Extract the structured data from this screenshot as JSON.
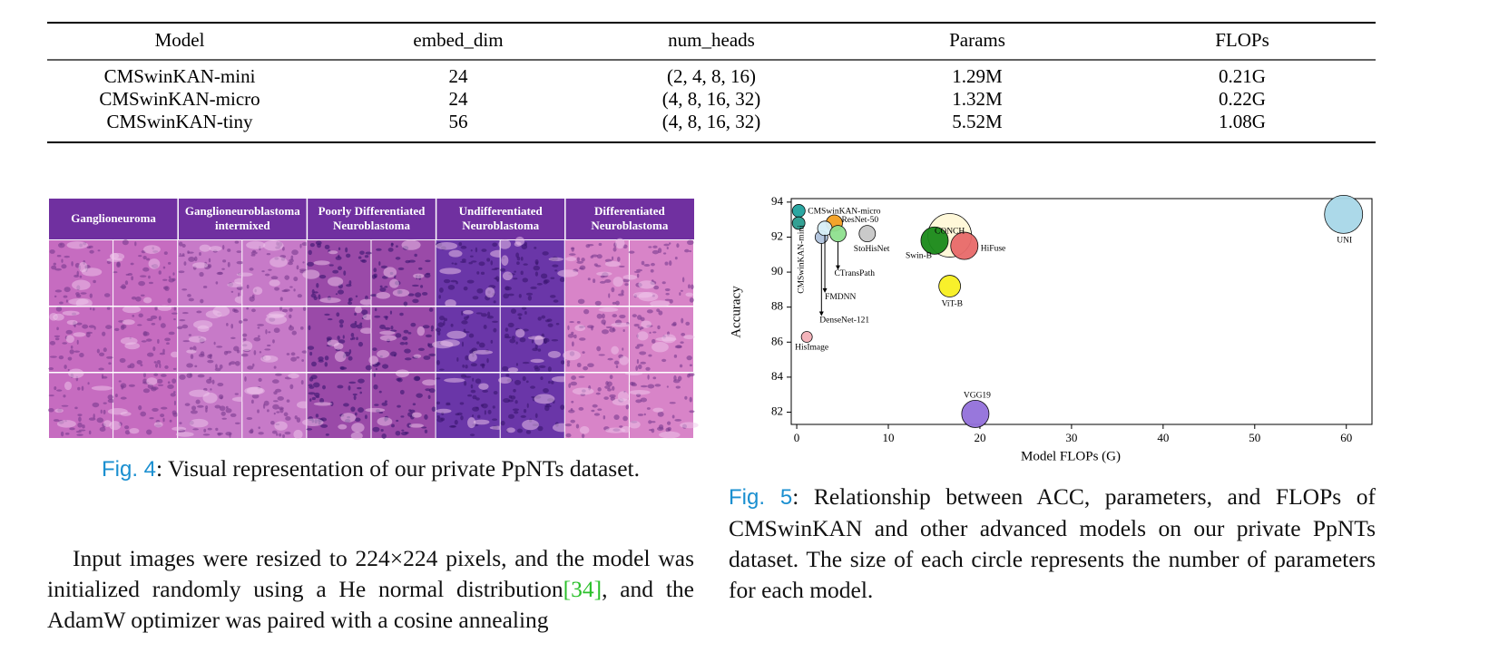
{
  "table": {
    "header": [
      "Model",
      "embed_dim",
      "num_heads",
      "Params",
      "FLOPs"
    ],
    "rows": [
      [
        "CMSwinKAN-mini",
        "24",
        "(2, 4, 8, 16)",
        "1.29M",
        "0.21G"
      ],
      [
        "CMSwinKAN-micro",
        "24",
        "(4, 8, 16, 32)",
        "1.32M",
        "0.22G"
      ],
      [
        "CMSwinKAN-tiny",
        "56",
        "(4, 8, 16, 32)",
        "5.52M",
        "1.08G"
      ]
    ]
  },
  "fig4": {
    "headers": [
      [
        "Ganglioneuroma"
      ],
      [
        "Ganglioneuroblastoma",
        "intermixed"
      ],
      [
        "Poorly Differentiated",
        "Neuroblastoma"
      ],
      [
        "Undifferentiated",
        "Neuroblastoma"
      ],
      [
        "Differentiated",
        "Neuroblastoma"
      ]
    ],
    "caption_label": "Fig. 4",
    "caption_text": ": Visual representation of our private PpNTs dataset."
  },
  "fig5": {
    "chart_data": {
      "type": "scatter",
      "xlabel": "Model FLOPs (G)",
      "ylabel": "Accuracy",
      "labels": [
        "CONCH",
        "Swin-B",
        "HiFuse",
        "CMSwinKAN-micro",
        "CMSwinKAN-mini",
        "ResNet-50",
        "DenseNet-121",
        "FMDNN",
        "CTransPath",
        "StoHisNet",
        "ViT-B",
        "VGG19",
        "HisImage",
        "UNI"
      ],
      "x": [
        16.7,
        15.05,
        18.3,
        0.22,
        0.21,
        4.1,
        2.7,
        3.07,
        4.5,
        7.7,
        16.7,
        19.5,
        1.1,
        59.7
      ],
      "values": [
        92.1,
        91.8,
        91.5,
        93.5,
        92.8,
        92.8,
        92.0,
        92.5,
        92.2,
        92.2,
        89.2,
        81.9,
        86.3,
        93.3
      ],
      "sizes": [
        15.3,
        6.0,
        6.0,
        1.32,
        1.29,
        2.15,
        1.3,
        1.7,
        2.15,
        2.15,
        3.8,
        6.0,
        0.96,
        11.7
      ],
      "colors": [
        "#fff8d8",
        "#1a8a1a",
        "#e86a6a",
        "#20a39e",
        "#2a9d8f",
        "#f4a020",
        "#b0c4de",
        "#d8f0f8",
        "#8fe08f",
        "#c8c8c8",
        "#f8f020",
        "#9370db",
        "#f4b0b8",
        "#a8d8e8"
      ],
      "xlim": [
        -0.6,
        62.8
      ],
      "ylim": [
        81.3,
        94.2
      ],
      "xticks": [
        0,
        10,
        20,
        30,
        40,
        50,
        60
      ],
      "yticks": [
        82,
        84,
        86,
        88,
        90,
        92,
        94
      ]
    },
    "caption_label": "Fig. 5",
    "caption_text": ": Relationship between ACC, parameters, and FLOPs of CMSwinKAN and other advanced models on our private PpNTs dataset. The size of each circle represents the number of parameters for each model."
  },
  "body": {
    "before": "Input images were resized to 224×224 pixels, and the model was initialized randomly using a He normal distribution",
    "cite": "[34]",
    "after": ", and the AdamW optimizer was paired with a cosine annealing"
  }
}
